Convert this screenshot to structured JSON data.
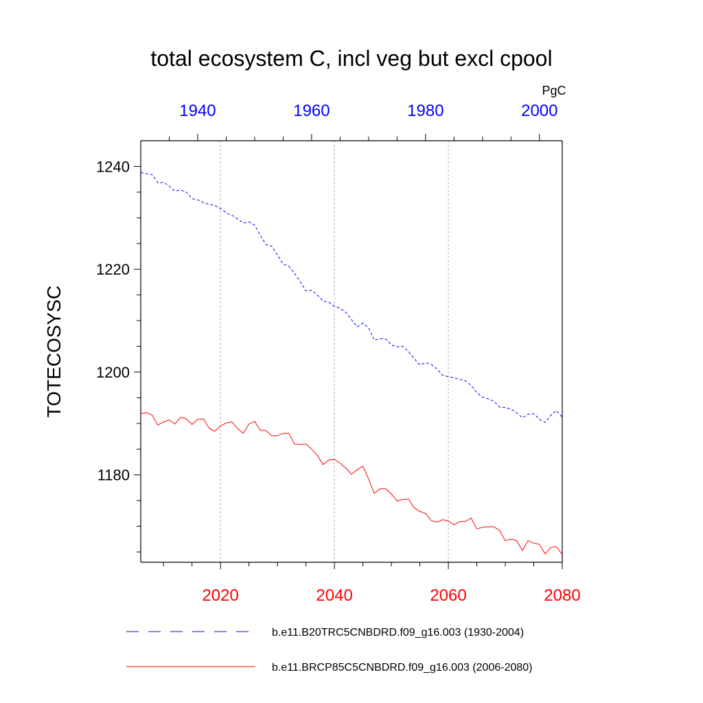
{
  "chart_data": {
    "type": "line",
    "title": "total ecosystem C, incl veg but excl cpool",
    "units": "PgC",
    "ylabel": "TOTECOSYSC",
    "ylim": [
      1163,
      1245
    ],
    "yticks": [
      1180,
      1200,
      1220,
      1240
    ],
    "grid": "vertical dashed at bottom-axis major ticks",
    "legend_position": "bottom",
    "colors": {
      "top_axis": "#0000ff",
      "bottom_axis": "#ff0000",
      "series_blue": "#0000ff",
      "series_red": "#ff0000",
      "grid": "#aaaaaa"
    },
    "x_bottom": {
      "range": [
        2006,
        2080
      ],
      "ticks": [
        2020,
        2040,
        2060,
        2080
      ],
      "color": "#ff0000"
    },
    "x_top": {
      "range": [
        1930,
        2004
      ],
      "ticks": [
        1940,
        1960,
        1980,
        2000
      ],
      "color": "#0000ff"
    },
    "series": [
      {
        "name": "b.e11.B20TRC5CNBDRD.f09_g16.003 (1930-2004)",
        "axis": "top",
        "style": "dashed",
        "color": "#0000ff",
        "x": [
          1930,
          1931,
          1932,
          1933,
          1934,
          1935,
          1936,
          1937,
          1938,
          1939,
          1940,
          1941,
          1942,
          1943,
          1944,
          1945,
          1946,
          1947,
          1948,
          1949,
          1950,
          1951,
          1952,
          1953,
          1954,
          1955,
          1956,
          1957,
          1958,
          1959,
          1960,
          1961,
          1962,
          1963,
          1964,
          1965,
          1966,
          1967,
          1968,
          1969,
          1970,
          1971,
          1972,
          1973,
          1974,
          1975,
          1976,
          1977,
          1978,
          1979,
          1980,
          1981,
          1982,
          1983,
          1984,
          1985,
          1986,
          1987,
          1988,
          1989,
          1990,
          1991,
          1992,
          1993,
          1994,
          1995,
          1996,
          1997,
          1998,
          1999,
          2000,
          2001,
          2002,
          2003,
          2004
        ],
        "values": [
          1238.8,
          1238.6,
          1238.4,
          1236.8,
          1236.9,
          1236.2,
          1235.2,
          1235.4,
          1235.0,
          1233.7,
          1233.5,
          1233.0,
          1232.6,
          1232.4,
          1231.8,
          1231.0,
          1230.5,
          1229.8,
          1229.0,
          1229.2,
          1228.6,
          1226.6,
          1224.8,
          1224.5,
          1222.8,
          1221.0,
          1220.6,
          1219.2,
          1217.6,
          1215.8,
          1215.9,
          1215.0,
          1213.8,
          1213.6,
          1212.8,
          1212.4,
          1211.6,
          1210.2,
          1208.8,
          1209.5,
          1208.6,
          1206.2,
          1206.5,
          1206.4,
          1205.3,
          1204.9,
          1205.0,
          1204.0,
          1202.6,
          1201.4,
          1201.8,
          1201.5,
          1200.6,
          1199.4,
          1199.1,
          1198.9,
          1198.6,
          1198.3,
          1197.4,
          1196.0,
          1195.1,
          1194.8,
          1194.3,
          1193.2,
          1193.1,
          1192.8,
          1192.1,
          1191.1,
          1191.8,
          1191.9,
          1190.8,
          1190.2,
          1191.6,
          1192.5,
          1191.2
        ]
      },
      {
        "name": "b.e11.BRCP85C5CNBDRD.f09_g16.003 (2006-2080)",
        "axis": "bottom",
        "style": "solid",
        "color": "#ff0000",
        "x": [
          2006,
          2007,
          2008,
          2009,
          2010,
          2011,
          2012,
          2013,
          2014,
          2015,
          2016,
          2017,
          2018,
          2019,
          2020,
          2021,
          2022,
          2023,
          2024,
          2025,
          2026,
          2027,
          2028,
          2029,
          2030,
          2031,
          2032,
          2033,
          2034,
          2035,
          2036,
          2037,
          2038,
          2039,
          2040,
          2041,
          2042,
          2043,
          2044,
          2045,
          2046,
          2047,
          2048,
          2049,
          2050,
          2051,
          2052,
          2053,
          2054,
          2055,
          2056,
          2057,
          2058,
          2059,
          2060,
          2061,
          2062,
          2063,
          2064,
          2065,
          2066,
          2067,
          2068,
          2069,
          2070,
          2071,
          2072,
          2073,
          2074,
          2075,
          2076,
          2077,
          2078,
          2079,
          2080
        ],
        "values": [
          1191.9,
          1192.1,
          1191.6,
          1189.7,
          1190.3,
          1190.7,
          1189.9,
          1191.2,
          1190.9,
          1189.8,
          1190.8,
          1190.9,
          1189.1,
          1188.5,
          1189.5,
          1190.1,
          1190.3,
          1189.0,
          1188.1,
          1189.9,
          1190.4,
          1188.7,
          1188.6,
          1187.6,
          1187.6,
          1188.1,
          1188.1,
          1186.0,
          1185.9,
          1186.0,
          1185.0,
          1183.8,
          1182.0,
          1182.9,
          1183.0,
          1182.3,
          1181.3,
          1180.1,
          1181.0,
          1181.7,
          1179.2,
          1176.4,
          1177.3,
          1177.3,
          1176.3,
          1174.9,
          1175.2,
          1175.3,
          1173.6,
          1172.9,
          1172.5,
          1171.1,
          1170.8,
          1171.3,
          1171.0,
          1170.3,
          1170.9,
          1170.9,
          1171.6,
          1169.5,
          1169.8,
          1169.9,
          1169.9,
          1169.2,
          1167.2,
          1167.5,
          1167.2,
          1165.3,
          1167.2,
          1166.7,
          1166.5,
          1164.6,
          1165.9,
          1166.0,
          1164.5
        ]
      }
    ]
  }
}
